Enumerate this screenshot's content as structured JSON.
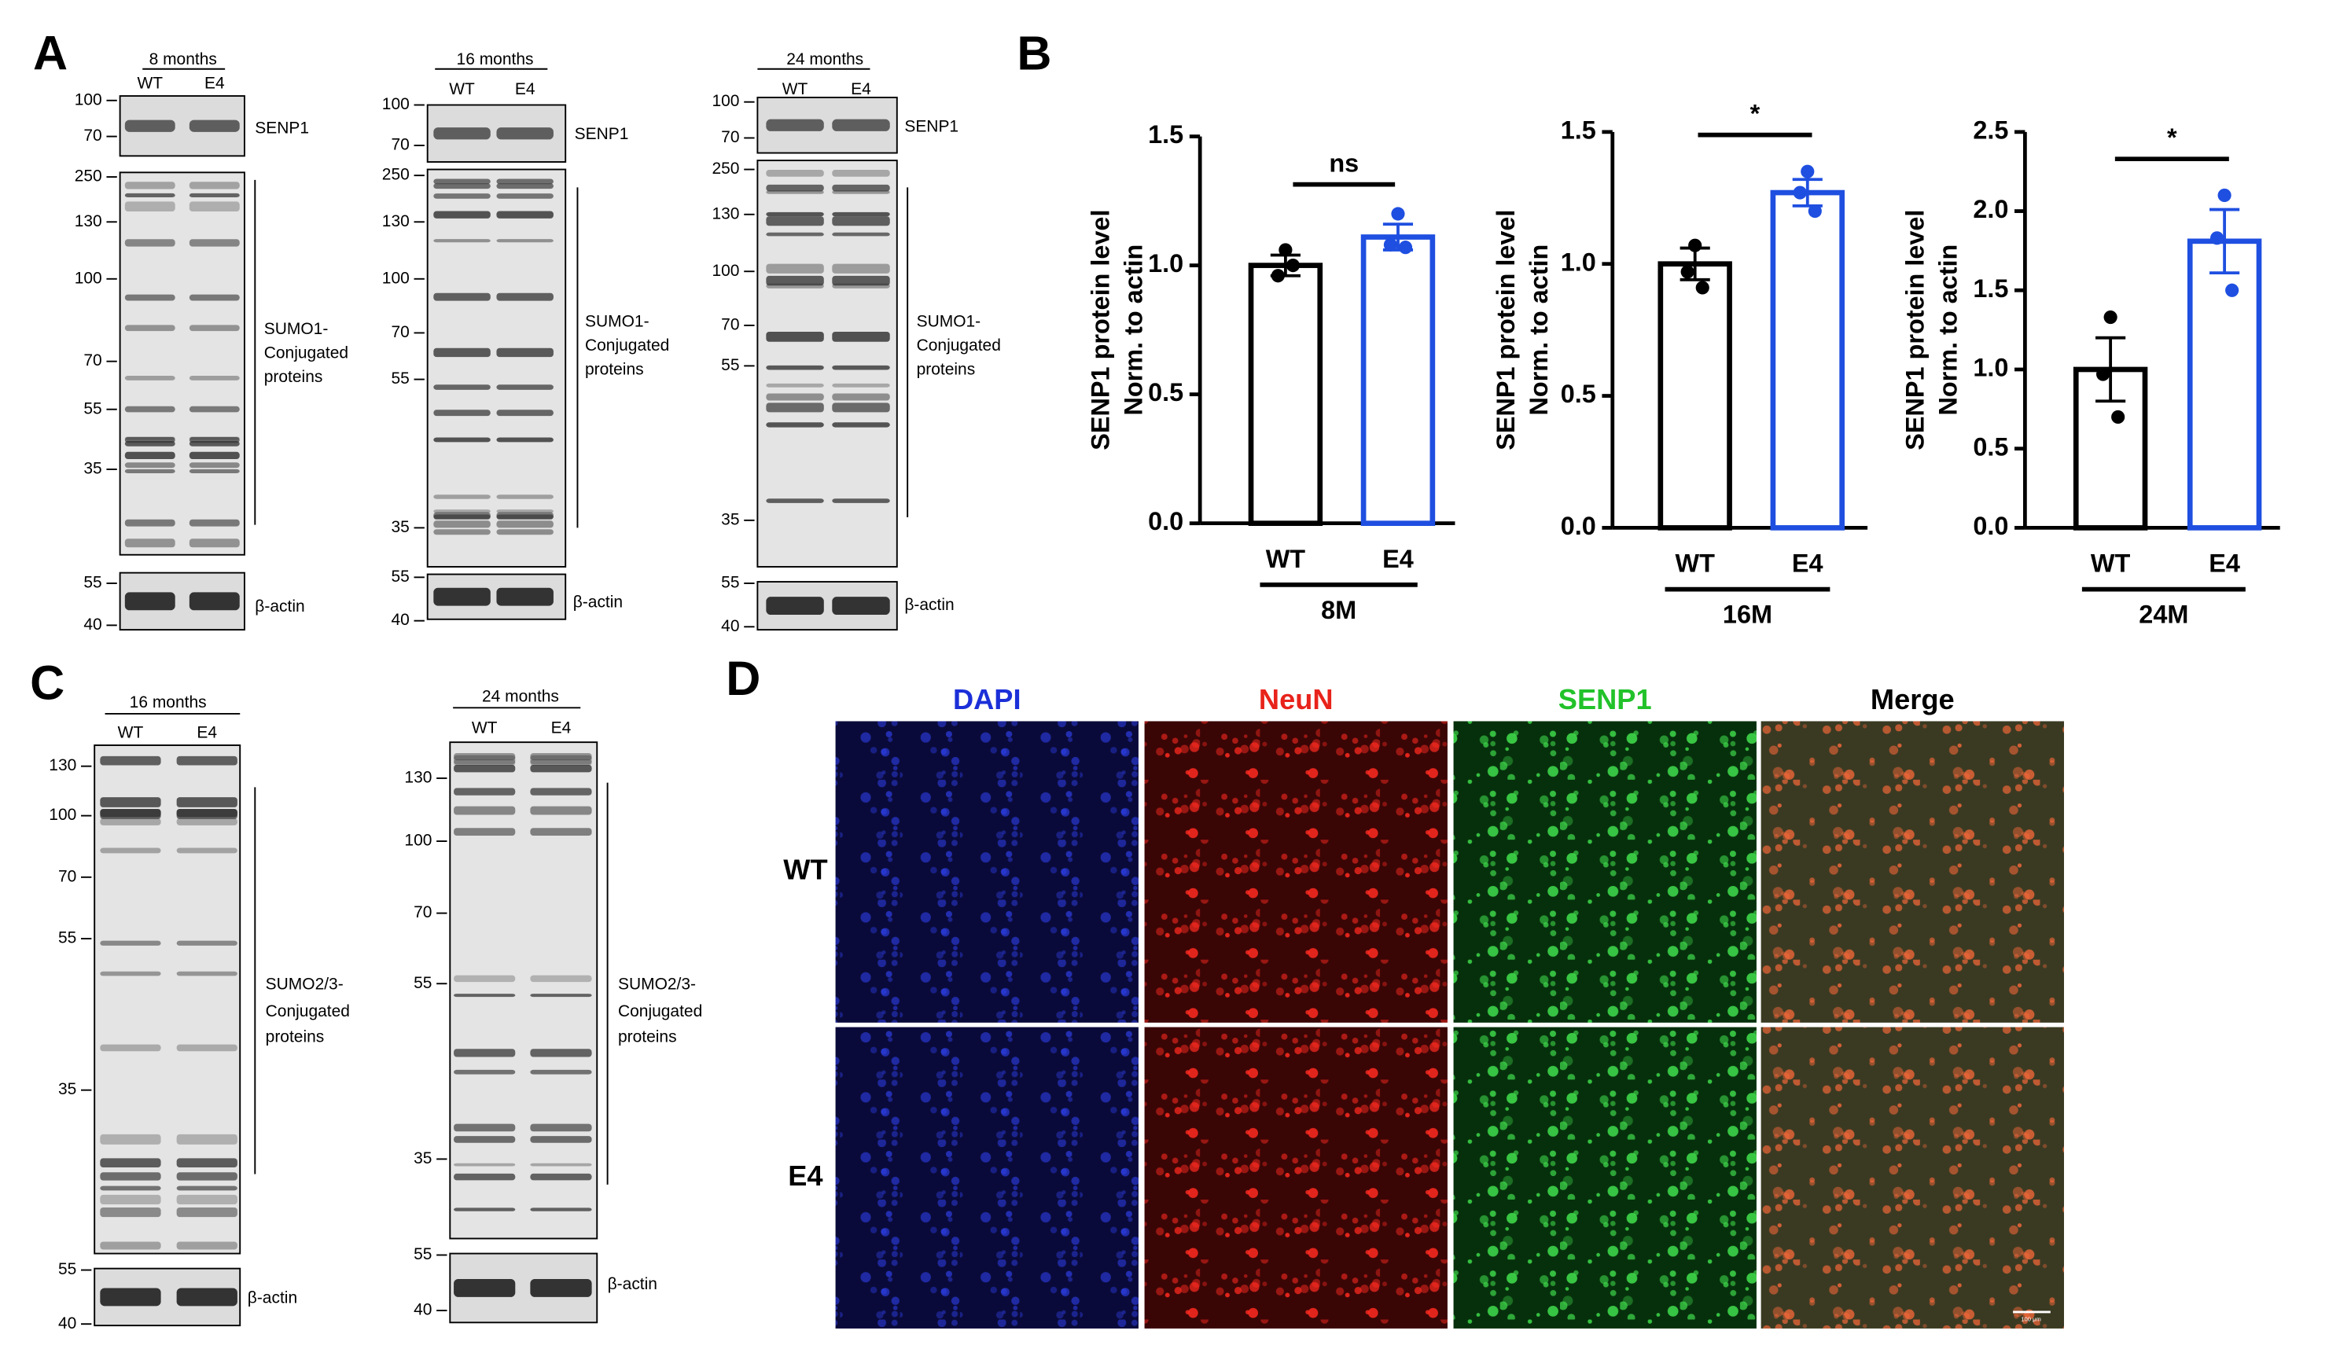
{
  "panel_a": {
    "label": "A",
    "blots": [
      {
        "header": "8 months",
        "lanes": [
          "WT",
          "E4"
        ],
        "target": {
          "label": "SENP1",
          "markers": [
            100,
            70
          ]
        },
        "conjugates": {
          "label": [
            "SUMO1-",
            "Conjugated",
            "proteins"
          ],
          "markers": [
            250,
            130,
            100,
            70,
            55,
            35
          ]
        },
        "loading": {
          "label": "β-actin",
          "markers": [
            55,
            40
          ]
        }
      },
      {
        "header": "16 months",
        "lanes": [
          "WT",
          "E4"
        ],
        "target": {
          "label": "SENP1",
          "markers": [
            100,
            70
          ]
        },
        "conjugates": {
          "label": [
            "SUMO1-",
            "Conjugated",
            "proteins"
          ],
          "markers": [
            250,
            130,
            100,
            70,
            55,
            35
          ]
        },
        "loading": {
          "label": "β-actin",
          "markers": [
            55,
            40
          ]
        }
      },
      {
        "header": "24 months",
        "lanes": [
          "WT",
          "E4"
        ],
        "target": {
          "label": "SENP1",
          "markers": [
            100,
            70
          ]
        },
        "conjugates": {
          "label": [
            "SUMO1-",
            "Conjugated",
            "proteins"
          ],
          "markers": [
            250,
            130,
            100,
            70,
            55,
            35
          ]
        },
        "loading": {
          "label": "β-actin",
          "markers": [
            55,
            40
          ]
        }
      }
    ]
  },
  "panel_b": {
    "label": "B"
  },
  "chart_data": [
    {
      "type": "bar",
      "ylabel": [
        "SENP1 protein level",
        "Norm. to actin"
      ],
      "categories": [
        "WT",
        "E4"
      ],
      "group": "8M",
      "values": [
        1.0,
        1.11
      ],
      "errors": [
        0.04,
        0.05
      ],
      "points": [
        [
          1.06,
          0.96,
          1.0
        ],
        [
          1.2,
          1.08,
          1.07
        ]
      ],
      "colors": [
        "#000000",
        "#1f4fe0"
      ],
      "significance": "ns",
      "ylim": [
        0,
        1.5
      ],
      "yticks": [
        {
          "value": 0,
          "label": "0.0"
        },
        0.5,
        {
          "value": 1,
          "label": "1.0"
        },
        1.5
      ]
    },
    {
      "type": "bar",
      "ylabel": [
        "SENP1 protein level",
        "Norm. to actin"
      ],
      "categories": [
        "WT",
        "E4"
      ],
      "group": "16M",
      "values": [
        1.0,
        1.27
      ],
      "errors": [
        0.06,
        0.05
      ],
      "points": [
        [
          1.07,
          0.97,
          0.91
        ],
        [
          1.35,
          1.27,
          1.2
        ]
      ],
      "colors": [
        "#000000",
        "#1f4fe0"
      ],
      "significance": "*",
      "ylim": [
        0,
        1.5
      ],
      "yticks": [
        {
          "value": 0,
          "label": "0.0"
        },
        0.5,
        {
          "value": 1,
          "label": "1.0"
        },
        1.5
      ]
    },
    {
      "type": "bar",
      "ylabel": [
        "SENP1 protein level",
        "Norm. to actin"
      ],
      "categories": [
        "WT",
        "E4"
      ],
      "group": "24M",
      "values": [
        1.0,
        1.81
      ],
      "errors": [
        0.2,
        0.2
      ],
      "points": [
        [
          1.33,
          0.97,
          0.7
        ],
        [
          2.1,
          1.83,
          1.5
        ]
      ],
      "colors": [
        "#000000",
        "#1f4fe0"
      ],
      "significance": "*",
      "ylim": [
        0,
        2.5
      ],
      "yticks": [
        {
          "value": 0,
          "label": "0.0"
        },
        0.5,
        {
          "value": 1,
          "label": "1.0"
        },
        1.5,
        {
          "value": 2,
          "label": "2.0"
        },
        2.5
      ]
    }
  ],
  "panel_c": {
    "label": "C",
    "blots": [
      {
        "header": "16 months",
        "lanes": [
          "WT",
          "E4"
        ],
        "conjugates": {
          "label": [
            "SUMO2/3-",
            "Conjugated",
            "proteins"
          ],
          "markers": [
            130,
            100,
            70,
            55,
            35
          ]
        },
        "loading": {
          "label": "β-actin",
          "markers": [
            55,
            40
          ]
        }
      },
      {
        "header": "24 months",
        "lanes": [
          "WT",
          "E4"
        ],
        "conjugates": {
          "label": [
            "SUMO2/3-",
            "Conjugated",
            "proteins"
          ],
          "markers": [
            130,
            100,
            70,
            55,
            35
          ]
        },
        "loading": {
          "label": "β-actin",
          "markers": [
            55,
            40
          ]
        }
      }
    ]
  },
  "panel_d": {
    "label": "D",
    "channels": [
      {
        "name": "DAPI",
        "color": "#1b2fd8"
      },
      {
        "name": "NeuN",
        "color": "#e8231b"
      },
      {
        "name": "SENP1",
        "color": "#22c22a"
      },
      {
        "name": "Merge",
        "color": "#000000"
      }
    ],
    "rows": [
      "WT",
      "E4"
    ],
    "scale_bar": "100 μm"
  }
}
